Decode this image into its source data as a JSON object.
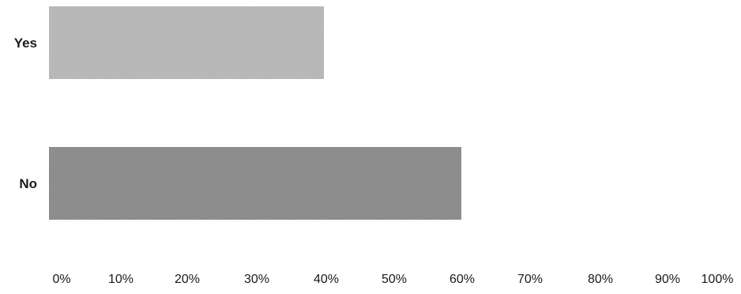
{
  "chart_data": {
    "type": "bar",
    "orientation": "horizontal",
    "categories": [
      "Yes",
      "No"
    ],
    "values": [
      40,
      60
    ],
    "colors": [
      "#b9b9b9",
      "#8e8e8e"
    ],
    "xlim": [
      0,
      100
    ],
    "x_ticks": [
      "0%",
      "10%",
      "20%",
      "30%",
      "40%",
      "50%",
      "60%",
      "70%",
      "80%",
      "90%",
      "100%"
    ],
    "grid": false,
    "legend": "none"
  }
}
